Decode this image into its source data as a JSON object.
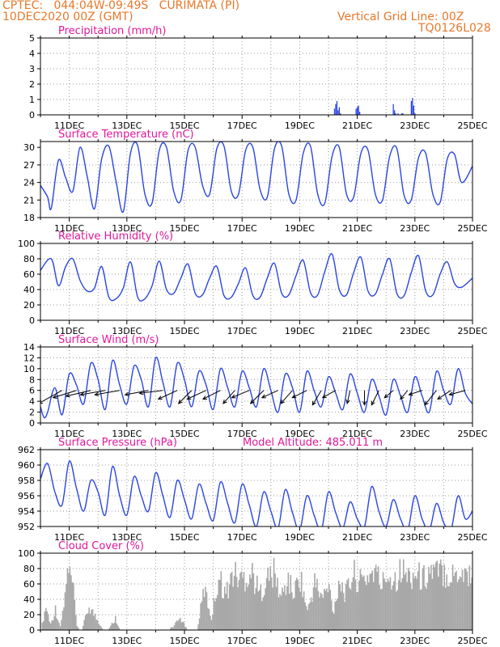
{
  "header": {
    "line1": "CPTEC:   044:04W-09:49S   CURIMATA (PI)",
    "line2": "10DEC2020 00Z (GMT)",
    "right1": "Vertical Grid Line: 00Z",
    "right2": "TQ0126L028"
  },
  "colors": {
    "header": "#e8782a",
    "title": "#e0189a",
    "series": "#2a45e0",
    "cloud": "#a8a8a8",
    "axis": "#000000",
    "grid": "#9a9a9a"
  },
  "chart_data": [
    {
      "type": "bar",
      "title": "Precipitation (mm/h)",
      "x_tick_labels": [
        "11DEC",
        "13DEC",
        "15DEC",
        "17DEC",
        "19DEC",
        "21DEC",
        "23DEC",
        "25DEC"
      ],
      "ylim": [
        0,
        5
      ],
      "y_ticks": [
        0,
        1,
        2,
        3,
        4,
        5
      ],
      "hours": [
        245,
        246,
        247,
        248,
        249,
        250,
        263,
        264,
        265,
        266,
        294,
        295,
        296,
        298,
        301,
        302,
        309,
        310,
        311,
        312
      ],
      "values": [
        0.4,
        0.7,
        0.9,
        0.3,
        0.5,
        0.1,
        0.4,
        0.5,
        0.6,
        0.2,
        0.7,
        0.3,
        0.1,
        0.1,
        0.1,
        0.1,
        0.9,
        1.1,
        0.6,
        0.1
      ]
    },
    {
      "type": "line",
      "title": "Surface Temperature (nC)",
      "x_tick_labels": [
        "11DEC",
        "13DEC",
        "15DEC",
        "17DEC",
        "19DEC",
        "21DEC",
        "23DEC",
        "25DEC"
      ],
      "ylim": [
        18,
        31
      ],
      "y_ticks": [
        18,
        21,
        24,
        27,
        30
      ],
      "x_hours": [
        0,
        6,
        9,
        15,
        21,
        27,
        33,
        39,
        45,
        51,
        57,
        63,
        69,
        75,
        81,
        87,
        93,
        99,
        105,
        111,
        117,
        123,
        129,
        135,
        141,
        147,
        153,
        159,
        165,
        171,
        177,
        183,
        189,
        195,
        201,
        207,
        213,
        219,
        225,
        231,
        237,
        243,
        249,
        255,
        261,
        267,
        273,
        279,
        285,
        291,
        297,
        303,
        309,
        315,
        321,
        327,
        333,
        339,
        345,
        351,
        360
      ],
      "values": [
        23.5,
        21.5,
        19.6,
        27.8,
        24.8,
        22.5,
        30.0,
        25.0,
        19.5,
        28.0,
        30.2,
        24.2,
        19.0,
        29.0,
        30.3,
        22.0,
        20.5,
        29.5,
        30.0,
        22.5,
        21.0,
        29.5,
        30.0,
        23.5,
        22.0,
        29.8,
        30.2,
        22.5,
        22.0,
        29.5,
        30.0,
        22.8,
        21.5,
        29.8,
        30.2,
        22.0,
        21.0,
        29.0,
        30.2,
        22.0,
        20.5,
        28.5,
        30.0,
        22.0,
        21.5,
        29.0,
        29.5,
        22.0,
        21.0,
        28.5,
        29.8,
        21.8,
        21.0,
        28.2,
        29.0,
        22.0,
        20.6,
        28.0,
        28.8,
        24.0,
        26.8
      ]
    },
    {
      "type": "line",
      "title": "Relative Humidity (%)",
      "x_tick_labels": [
        "11DEC",
        "13DEC",
        "15DEC",
        "17DEC",
        "19DEC",
        "21DEC",
        "23DEC",
        "25DEC"
      ],
      "ylim": [
        0,
        100
      ],
      "y_ticks": [
        0,
        20,
        40,
        60,
        80,
        100
      ],
      "x_hours": [
        0,
        9,
        15,
        21,
        27,
        33,
        39,
        45,
        51,
        57,
        63,
        69,
        75,
        81,
        87,
        93,
        99,
        105,
        111,
        117,
        123,
        129,
        135,
        141,
        147,
        153,
        159,
        165,
        171,
        177,
        183,
        189,
        195,
        201,
        207,
        213,
        219,
        225,
        231,
        237,
        243,
        249,
        255,
        261,
        267,
        273,
        279,
        285,
        291,
        297,
        303,
        309,
        315,
        321,
        327,
        333,
        339,
        345,
        351,
        360
      ],
      "values": [
        65,
        80,
        45,
        70,
        80,
        52,
        38,
        42,
        70,
        30,
        28,
        42,
        76,
        30,
        28,
        45,
        77,
        40,
        35,
        55,
        73,
        35,
        33,
        55,
        70,
        32,
        30,
        48,
        68,
        32,
        30,
        55,
        74,
        35,
        33,
        58,
        78,
        36,
        33,
        64,
        86,
        40,
        33,
        62,
        82,
        38,
        34,
        60,
        80,
        35,
        32,
        62,
        84,
        38,
        33,
        60,
        76,
        48,
        43,
        55
      ]
    },
    {
      "type": "line",
      "title": "Surface Wind (m/s)",
      "x_tick_labels": [
        "11DEC",
        "13DEC",
        "15DEC",
        "17DEC",
        "19DEC",
        "21DEC",
        "23DEC",
        "25DEC"
      ],
      "ylim": [
        0,
        14
      ],
      "y_ticks": [
        0,
        2,
        4,
        6,
        8,
        10,
        12,
        14
      ],
      "x_hours": [
        0,
        3,
        6,
        12,
        18,
        24,
        30,
        36,
        42,
        48,
        54,
        60,
        66,
        72,
        78,
        84,
        90,
        96,
        102,
        108,
        114,
        120,
        126,
        132,
        138,
        144,
        150,
        156,
        162,
        168,
        174,
        180,
        186,
        192,
        198,
        204,
        210,
        216,
        222,
        228,
        234,
        240,
        246,
        252,
        258,
        264,
        270,
        276,
        282,
        288,
        294,
        300,
        306,
        312,
        318,
        324,
        330,
        336,
        342,
        348,
        354,
        360
      ],
      "values": [
        3,
        1,
        2,
        6.5,
        1.5,
        9,
        7,
        3.5,
        11,
        8,
        2.5,
        11.5,
        7,
        3.5,
        10.5,
        8,
        3,
        12,
        7.5,
        3,
        11,
        8,
        3,
        9.5,
        7,
        2.5,
        10,
        6.5,
        3,
        9.5,
        6.5,
        3,
        10,
        6,
        2,
        9,
        6.5,
        2,
        9.5,
        6,
        3,
        8.5,
        5.5,
        2.5,
        9,
        5.5,
        2,
        8,
        5,
        1.5,
        8,
        5,
        2,
        8.5,
        5,
        2,
        9.5,
        6,
        3.5,
        10,
        5.5,
        3.5
      ],
      "wind_vectors": [
        {
          "hour": 0,
          "u": -1.0,
          "v": 0.0
        },
        {
          "hour": 18,
          "u": -1.6,
          "v": -0.9
        },
        {
          "hour": 30,
          "u": -1.6,
          "v": -0.5
        },
        {
          "hour": 42,
          "u": -1.7,
          "v": -0.4
        },
        {
          "hour": 54,
          "u": -1.7,
          "v": -0.3
        },
        {
          "hour": 66,
          "u": -1.7,
          "v": -0.3
        },
        {
          "hour": 90,
          "u": -1.6,
          "v": -0.3
        },
        {
          "hour": 102,
          "u": -1.6,
          "v": -0.2
        },
        {
          "hour": 114,
          "u": -1.3,
          "v": -0.6
        },
        {
          "hour": 126,
          "u": -0.9,
          "v": -0.9
        },
        {
          "hour": 138,
          "u": -1.3,
          "v": -0.6
        },
        {
          "hour": 150,
          "u": -1.2,
          "v": -0.6
        },
        {
          "hour": 162,
          "u": -0.8,
          "v": -0.9
        },
        {
          "hour": 174,
          "u": -1.2,
          "v": -0.5
        },
        {
          "hour": 186,
          "u": -0.9,
          "v": -0.9
        },
        {
          "hour": 198,
          "u": -1.1,
          "v": -0.5
        },
        {
          "hour": 210,
          "u": -0.8,
          "v": -0.9
        },
        {
          "hour": 222,
          "u": -1.0,
          "v": -0.5
        },
        {
          "hour": 234,
          "u": -0.6,
          "v": -1.0
        },
        {
          "hour": 246,
          "u": -0.9,
          "v": -0.5
        },
        {
          "hour": 258,
          "u": -0.2,
          "v": -0.9
        },
        {
          "hour": 270,
          "u": 0.0,
          "v": -1.0
        },
        {
          "hour": 282,
          "u": -0.5,
          "v": -1.0
        },
        {
          "hour": 294,
          "u": -0.6,
          "v": -0.5
        },
        {
          "hour": 306,
          "u": -0.5,
          "v": -0.6
        },
        {
          "hour": 318,
          "u": -0.9,
          "v": -0.3
        },
        {
          "hour": 330,
          "u": -0.8,
          "v": -1.0
        },
        {
          "hour": 342,
          "u": -0.9,
          "v": -0.6
        },
        {
          "hour": 354,
          "u": -1.1,
          "v": -0.3
        }
      ]
    },
    {
      "type": "line",
      "title": "Surface Pressure (hPa)",
      "subtitle": "Model Altitude: 485.011  m",
      "x_tick_labels": [
        "11DEC",
        "13DEC",
        "15DEC",
        "17DEC",
        "19DEC",
        "21DEC",
        "23DEC",
        "25DEC"
      ],
      "ylim": [
        952,
        962
      ],
      "y_ticks": [
        952,
        954,
        956,
        958,
        960,
        962
      ],
      "x_hours": [
        0,
        6,
        12,
        18,
        24,
        30,
        36,
        42,
        48,
        54,
        60,
        66,
        72,
        78,
        84,
        90,
        96,
        102,
        108,
        114,
        120,
        126,
        132,
        138,
        144,
        150,
        156,
        162,
        168,
        174,
        180,
        186,
        192,
        198,
        204,
        210,
        216,
        222,
        228,
        234,
        240,
        246,
        252,
        258,
        264,
        270,
        276,
        282,
        288,
        294,
        300,
        306,
        312,
        318,
        324,
        330,
        336,
        342,
        348,
        354,
        360
      ],
      "values": [
        958.2,
        960.2,
        956.5,
        954.8,
        960.5,
        957.0,
        954.0,
        958.0,
        956.5,
        953.5,
        959.8,
        956.0,
        953.5,
        958.5,
        956.0,
        954.0,
        959.0,
        956.0,
        953.2,
        958.0,
        955.5,
        953.0,
        957.5,
        955.0,
        952.8,
        957.8,
        955.0,
        952.5,
        957.5,
        954.8,
        952.0,
        956.5,
        954.0,
        951.8,
        956.8,
        953.8,
        951.5,
        956.0,
        953.5,
        951.5,
        956.5,
        953.8,
        951.8,
        955.2,
        953.0,
        952.0,
        957.2,
        954.0,
        952.0,
        955.5,
        953.0,
        951.5,
        956.0,
        953.0,
        951.5,
        955.0,
        952.5,
        951.5,
        956.0,
        953.0,
        954.0
      ]
    },
    {
      "type": "bar",
      "title": "Cloud Cover (%)",
      "x_tick_labels": [
        "11DEC",
        "13DEC",
        "15DEC",
        "17DEC",
        "19DEC",
        "21DEC",
        "23DEC",
        "25DEC"
      ],
      "ylim": [
        0,
        100
      ],
      "y_ticks": [
        0,
        20,
        40,
        60,
        80,
        100
      ],
      "anchors_hours": [
        0,
        4,
        8,
        12,
        16,
        20,
        22,
        26,
        30,
        34,
        40,
        46,
        52,
        56,
        62,
        66,
        72,
        80,
        88,
        96,
        104,
        110,
        116,
        122,
        126,
        130,
        136,
        142,
        148,
        154,
        160,
        166,
        170,
        176,
        182,
        188,
        194,
        200,
        206,
        210,
        216,
        222,
        228,
        234,
        240,
        244,
        248,
        254,
        260,
        266,
        272,
        278,
        284,
        288,
        294,
        300,
        306,
        312,
        318,
        324,
        330,
        336,
        342,
        348,
        354,
        360
      ],
      "anchors_values": [
        0,
        40,
        10,
        35,
        5,
        55,
        95,
        80,
        5,
        0,
        40,
        20,
        0,
        0,
        20,
        0,
        0,
        0,
        0,
        0,
        0,
        5,
        20,
        0,
        0,
        0,
        70,
        20,
        90,
        60,
        95,
        85,
        90,
        95,
        60,
        85,
        95,
        55,
        85,
        60,
        90,
        30,
        80,
        55,
        70,
        30,
        85,
        60,
        95,
        80,
        90,
        100,
        75,
        95,
        85,
        100,
        90,
        95,
        85,
        100,
        95,
        100,
        90,
        100,
        95,
        95
      ]
    }
  ]
}
